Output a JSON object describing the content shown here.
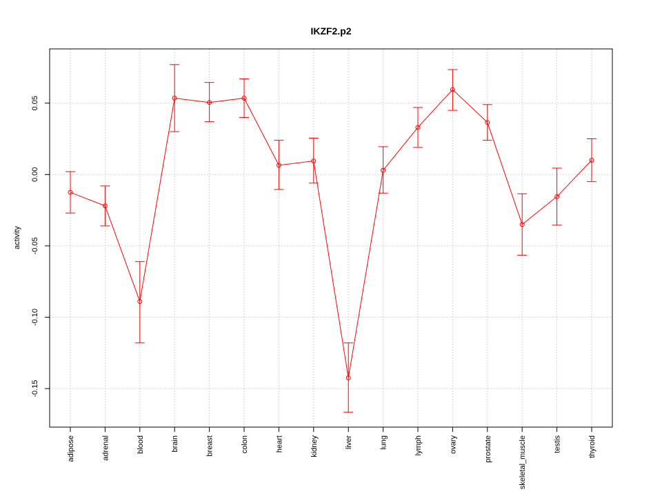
{
  "chart_data": {
    "type": "line",
    "title": "IKZF2.p2",
    "xlabel": "",
    "ylabel": "activity",
    "ylim": [
      -0.177,
      0.088
    ],
    "yticks": [
      -0.15,
      -0.1,
      -0.05,
      0.0,
      0.05
    ],
    "ytick_labels": [
      "-0.15",
      "-0.10",
      "-0.05",
      "0.00",
      "0.05"
    ],
    "grid": true,
    "colors": {
      "series": "#ff0000",
      "grid": "#d3d3d3",
      "frame": "#000000"
    },
    "categories": [
      "adipose",
      "adrenal",
      "blood",
      "brain",
      "breast",
      "colon",
      "heart",
      "kidney",
      "liver",
      "lung",
      "lymph",
      "ovary",
      "prostate",
      "skeletal_muscle",
      "testis",
      "thyroid"
    ],
    "series": [
      {
        "values": [
          -0.0125,
          -0.022,
          -0.089,
          0.0535,
          0.0505,
          0.0535,
          0.0065,
          0.0095,
          -0.1425,
          0.003,
          0.033,
          0.0595,
          0.0365,
          -0.035,
          -0.0155,
          0.01
        ],
        "err_low": [
          -0.027,
          -0.036,
          -0.118,
          0.03,
          0.037,
          0.04,
          -0.0105,
          -0.006,
          -0.1665,
          -0.013,
          0.019,
          0.045,
          0.024,
          -0.0565,
          -0.0355,
          -0.005
        ],
        "err_high": [
          0.002,
          -0.008,
          -0.061,
          0.077,
          0.0645,
          0.067,
          0.024,
          0.0255,
          -0.118,
          0.0195,
          0.047,
          0.0735,
          0.049,
          -0.0135,
          0.0045,
          0.025
        ]
      }
    ]
  }
}
